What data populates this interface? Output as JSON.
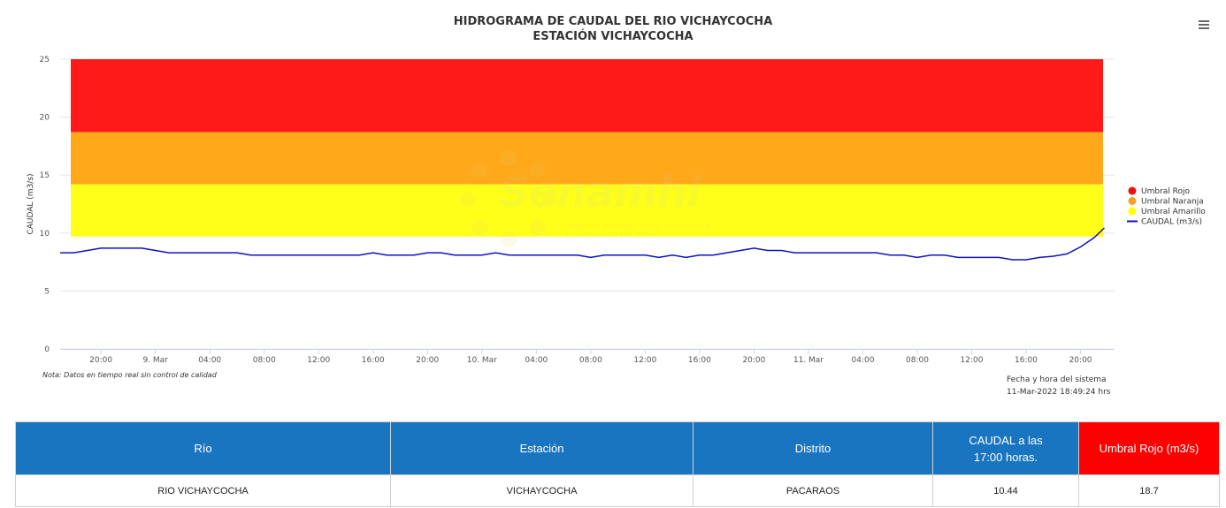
{
  "chart_data": {
    "type": "line",
    "title": "HIDROGRAMA DE CAUDAL DEL RIO VICHAYCOCHA",
    "subtitle": "ESTACIÓN VICHAYCOCHA",
    "ylabel": "CAUDAL (m3/s)",
    "xlabel": "",
    "ylim": [
      0,
      25
    ],
    "yticks": [
      0,
      5,
      10,
      15,
      20,
      25
    ],
    "xlim": [
      "2022-03-08T17:00",
      "2022-03-11T22:30"
    ],
    "xticks": [
      {
        "t": "2022-03-08T20:00",
        "label": "20:00"
      },
      {
        "t": "2022-03-09T00:00",
        "label": "9. Mar"
      },
      {
        "t": "2022-03-09T04:00",
        "label": "04:00"
      },
      {
        "t": "2022-03-09T08:00",
        "label": "08:00"
      },
      {
        "t": "2022-03-09T12:00",
        "label": "12:00"
      },
      {
        "t": "2022-03-09T16:00",
        "label": "16:00"
      },
      {
        "t": "2022-03-09T20:00",
        "label": "20:00"
      },
      {
        "t": "2022-03-10T00:00",
        "label": "10. Mar"
      },
      {
        "t": "2022-03-10T04:00",
        "label": "04:00"
      },
      {
        "t": "2022-03-10T08:00",
        "label": "08:00"
      },
      {
        "t": "2022-03-10T12:00",
        "label": "12:00"
      },
      {
        "t": "2022-03-10T16:00",
        "label": "16:00"
      },
      {
        "t": "2022-03-10T20:00",
        "label": "20:00"
      },
      {
        "t": "2022-03-11T00:00",
        "label": "11. Mar"
      },
      {
        "t": "2022-03-11T04:00",
        "label": "04:00"
      },
      {
        "t": "2022-03-11T08:00",
        "label": "08:00"
      },
      {
        "t": "2022-03-11T12:00",
        "label": "12:00"
      },
      {
        "t": "2022-03-11T16:00",
        "label": "16:00"
      },
      {
        "t": "2022-03-11T20:00",
        "label": "20:00"
      }
    ],
    "thresholds": [
      {
        "name": "Umbral Rojo",
        "from": 18.7,
        "to": 25,
        "color": "#ff1a1a"
      },
      {
        "name": "Umbral Naranja",
        "from": 14.2,
        "to": 18.7,
        "color": "#ffa81a"
      },
      {
        "name": "Umbral Amarillo",
        "from": 9.7,
        "to": 14.2,
        "color": "#ffff1a"
      }
    ],
    "series": [
      {
        "name": "CAUDAL (m3/s)",
        "color": "#1010c0",
        "points": [
          [
            "2022-03-08T17:00",
            8.3
          ],
          [
            "2022-03-08T18:00",
            8.3
          ],
          [
            "2022-03-08T19:00",
            8.5
          ],
          [
            "2022-03-08T20:00",
            8.7
          ],
          [
            "2022-03-08T22:00",
            8.7
          ],
          [
            "2022-03-08T23:00",
            8.7
          ],
          [
            "2022-03-09T00:00",
            8.5
          ],
          [
            "2022-03-09T01:00",
            8.3
          ],
          [
            "2022-03-09T06:00",
            8.3
          ],
          [
            "2022-03-09T07:00",
            8.1
          ],
          [
            "2022-03-09T15:00",
            8.1
          ],
          [
            "2022-03-09T16:00",
            8.3
          ],
          [
            "2022-03-09T17:00",
            8.1
          ],
          [
            "2022-03-09T19:00",
            8.1
          ],
          [
            "2022-03-09T20:00",
            8.3
          ],
          [
            "2022-03-09T21:00",
            8.3
          ],
          [
            "2022-03-09T22:00",
            8.1
          ],
          [
            "2022-03-10T00:00",
            8.1
          ],
          [
            "2022-03-10T01:00",
            8.3
          ],
          [
            "2022-03-10T02:00",
            8.1
          ],
          [
            "2022-03-10T07:00",
            8.1
          ],
          [
            "2022-03-10T08:00",
            7.9
          ],
          [
            "2022-03-10T09:00",
            8.1
          ],
          [
            "2022-03-10T12:00",
            8.1
          ],
          [
            "2022-03-10T13:00",
            7.9
          ],
          [
            "2022-03-10T14:00",
            8.1
          ],
          [
            "2022-03-10T15:00",
            7.9
          ],
          [
            "2022-03-10T16:00",
            8.1
          ],
          [
            "2022-03-10T17:00",
            8.1
          ],
          [
            "2022-03-10T18:00",
            8.3
          ],
          [
            "2022-03-10T19:00",
            8.5
          ],
          [
            "2022-03-10T20:00",
            8.7
          ],
          [
            "2022-03-10T21:00",
            8.5
          ],
          [
            "2022-03-10T22:00",
            8.5
          ],
          [
            "2022-03-10T23:00",
            8.3
          ],
          [
            "2022-03-11T05:00",
            8.3
          ],
          [
            "2022-03-11T06:00",
            8.1
          ],
          [
            "2022-03-11T07:00",
            8.1
          ],
          [
            "2022-03-11T08:00",
            7.9
          ],
          [
            "2022-03-11T09:00",
            8.1
          ],
          [
            "2022-03-11T10:00",
            8.1
          ],
          [
            "2022-03-11T11:00",
            7.9
          ],
          [
            "2022-03-11T14:00",
            7.9
          ],
          [
            "2022-03-11T15:00",
            7.7
          ],
          [
            "2022-03-11T16:00",
            7.7
          ],
          [
            "2022-03-11T17:00",
            7.9
          ],
          [
            "2022-03-11T18:00",
            8.0
          ],
          [
            "2022-03-11T19:00",
            8.2
          ],
          [
            "2022-03-11T20:00",
            8.8
          ],
          [
            "2022-03-11T21:00",
            9.6
          ],
          [
            "2022-03-11T21:45",
            10.44
          ]
        ]
      }
    ],
    "legend": {
      "placement": "right",
      "items": [
        {
          "name": "Umbral Rojo",
          "color": "#ee1111",
          "kind": "dot"
        },
        {
          "name": "Umbral Naranja",
          "color": "#f5a020",
          "kind": "dot"
        },
        {
          "name": "Umbral Amarillo",
          "color": "#ffff00",
          "kind": "dot"
        },
        {
          "name": "CAUDAL (m3/s)",
          "color": "#1010c0",
          "kind": "line"
        }
      ]
    },
    "grid": true
  },
  "chart": {
    "title": "HIDROGRAMA DE CAUDAL DEL RIO VICHAYCOCHA",
    "subtitle": "ESTACIÓN VICHAYCOCHA",
    "menu_icon": "hamburger-menu-icon",
    "note": "Nota: Datos en tiempo real sin control de calidad",
    "system_date_label": "Fecha y hora del sistema",
    "system_date_value": "11-Mar-2022 18:49:24 hrs",
    "watermark": {
      "brand": "Senamhi",
      "line1": "SERVICIO NACIONAL DE METEOROLOGÍA",
      "line2": "E HIDROLOGÍA DEL PERÚ"
    }
  },
  "table": {
    "headers": [
      "Río",
      "Estación",
      "Distrito",
      "CAUDAL a las 17:00 horas.",
      "Umbral Rojo (m3/s)"
    ],
    "header_colors": {
      "default": "#1a75c0",
      "umbral": "#ff0000"
    },
    "row": [
      "RIO VICHAYCOCHA",
      "VICHAYCOCHA",
      "PACARAOS",
      "10.44",
      "18.7"
    ]
  }
}
